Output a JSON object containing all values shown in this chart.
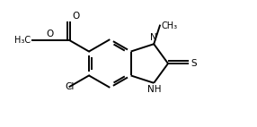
{
  "bg_color": "#ffffff",
  "line_color": "#000000",
  "line_width": 1.4,
  "font_size": 7.5,
  "figsize": [
    2.86,
    1.42
  ],
  "dpi": 100,
  "xlim": [
    0.0,
    5.5
  ],
  "ylim": [
    0.3,
    2.7
  ]
}
